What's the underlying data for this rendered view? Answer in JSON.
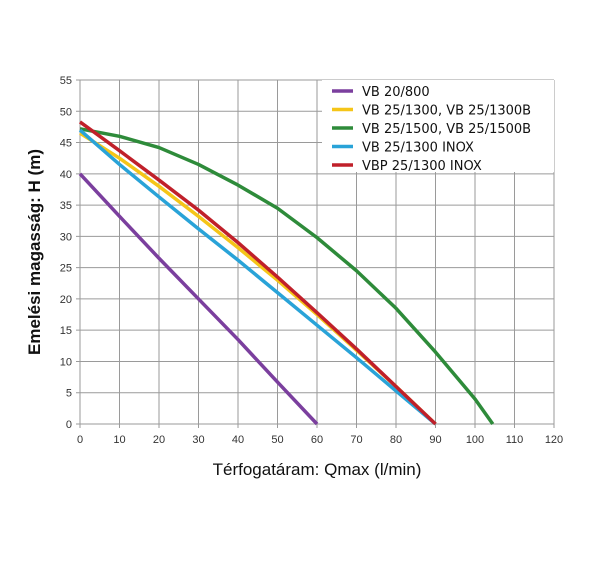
{
  "chart_data": {
    "type": "line",
    "title": "",
    "xlabel": "Térfogatáram: Qmax (l/min)",
    "ylabel": "Emelési magasság: H (m)",
    "xlim": [
      0,
      120
    ],
    "ylim": [
      0,
      55
    ],
    "xticks": [
      0,
      10,
      20,
      30,
      40,
      50,
      60,
      70,
      80,
      90,
      100,
      110,
      120
    ],
    "yticks": [
      0,
      5,
      10,
      15,
      20,
      25,
      30,
      35,
      40,
      45,
      50,
      55
    ],
    "grid": true,
    "legend_position": "top-right",
    "series": [
      {
        "name": "VB 20/800",
        "color": "#7b3f9e",
        "x": [
          0,
          10,
          20,
          30,
          40,
          50,
          60
        ],
        "y": [
          40,
          33.2,
          26.5,
          20,
          13.5,
          6.7,
          0
        ]
      },
      {
        "name": "VB 25/1300, VB 25/1300B",
        "color": "#f5c518",
        "x": [
          0,
          10,
          20,
          30,
          40,
          50,
          60,
          70,
          80,
          90
        ],
        "y": [
          46.5,
          42.5,
          38,
          33.2,
          28.2,
          23,
          17.5,
          11.8,
          6,
          0
        ]
      },
      {
        "name": "VB 25/1500, VB 25/1500B",
        "color": "#2e8b3a",
        "x": [
          0,
          10,
          20,
          30,
          40,
          50,
          60,
          70,
          80,
          90,
          100,
          104.5
        ],
        "y": [
          47.2,
          46,
          44.2,
          41.5,
          38.2,
          34.5,
          29.8,
          24.5,
          18.5,
          11.5,
          4,
          0
        ]
      },
      {
        "name": "VB 25/1300 INOX",
        "color": "#29a3d8",
        "x": [
          0,
          10,
          20,
          30,
          40,
          50,
          60,
          70,
          80,
          90
        ],
        "y": [
          47,
          41.5,
          36.3,
          31.2,
          26.2,
          21,
          15.8,
          10.6,
          5.3,
          0
        ]
      },
      {
        "name": "VBP 25/1300 INOX",
        "color": "#c0202a",
        "x": [
          0,
          10,
          20,
          30,
          40,
          50,
          60,
          70,
          80,
          90
        ],
        "y": [
          48.3,
          43.7,
          39,
          34.2,
          29,
          23.5,
          17.8,
          12,
          6,
          0
        ]
      }
    ]
  }
}
